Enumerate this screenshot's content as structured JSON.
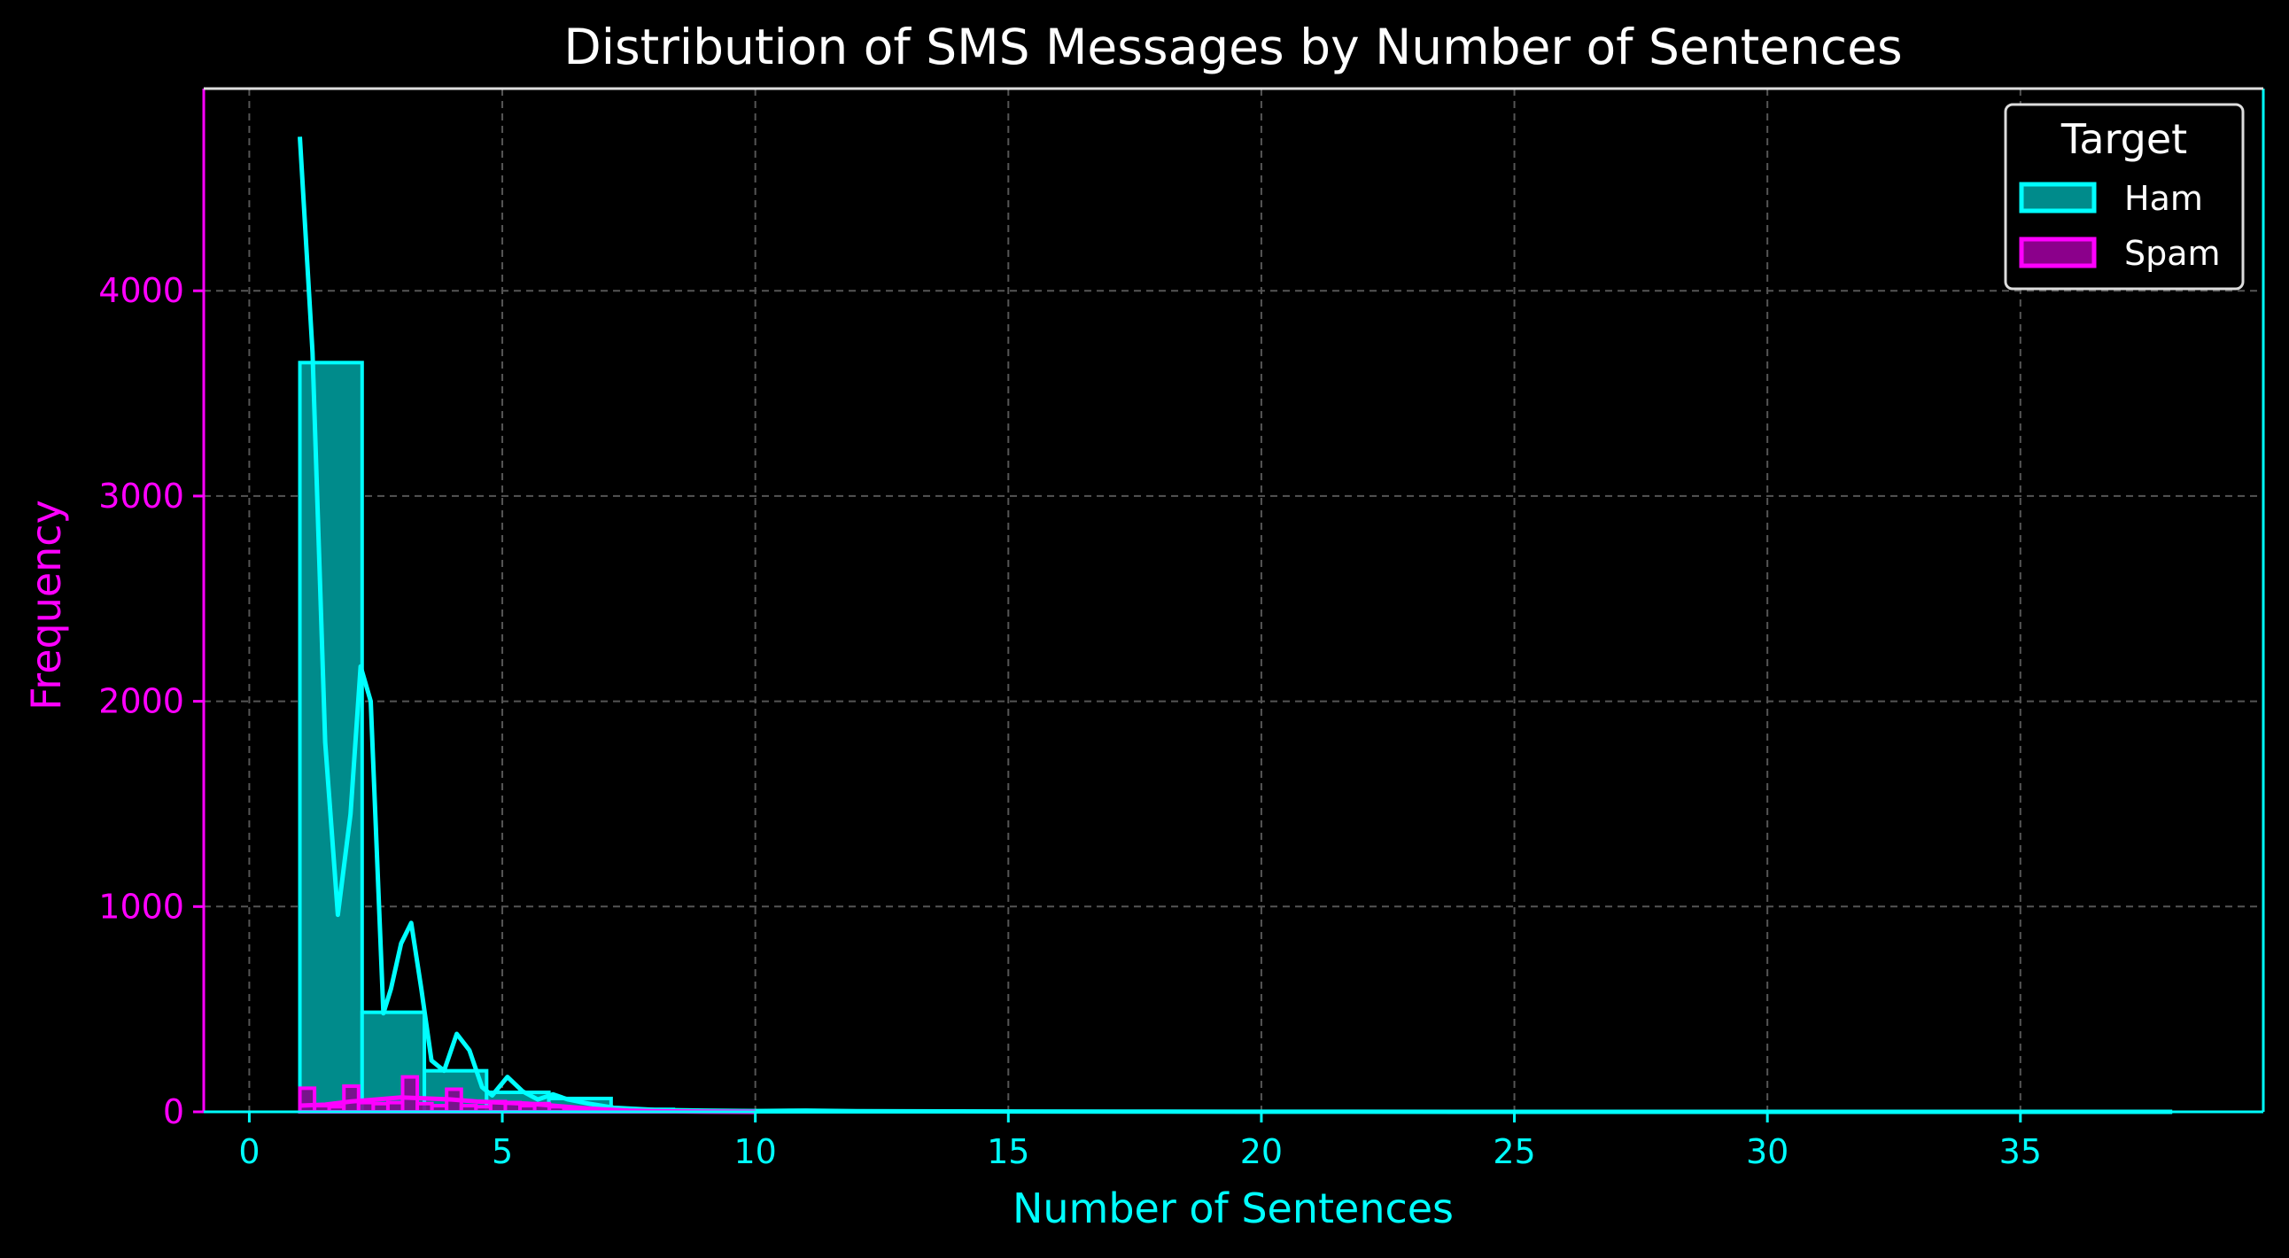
{
  "chart_data": {
    "type": "histogram",
    "title": "Distribution of SMS Messages by Number of Sentences",
    "xlabel": "Number of Sentences",
    "ylabel": "Frequency",
    "xlim": [
      -0.9,
      39.8
    ],
    "ylim": [
      0,
      4985
    ],
    "xticks": [
      0,
      5,
      10,
      15,
      20,
      25,
      30,
      35
    ],
    "yticks": [
      0,
      1000,
      2000,
      3000,
      4000
    ],
    "grid": true,
    "legend": {
      "title": "Target",
      "position": "top-right"
    },
    "bin_width": 1.23,
    "series": [
      {
        "name": "Ham",
        "bins": [
          {
            "x0": 1.0,
            "x1": 2.23,
            "count": 3650
          },
          {
            "x0": 2.23,
            "x1": 3.46,
            "count": 485
          },
          {
            "x0": 3.46,
            "x1": 4.69,
            "count": 200
          },
          {
            "x0": 4.69,
            "x1": 5.92,
            "count": 95
          },
          {
            "x0": 5.92,
            "x1": 7.15,
            "count": 65
          },
          {
            "x0": 7.15,
            "x1": 8.38,
            "count": 12
          },
          {
            "x0": 8.38,
            "x1": 9.61,
            "count": 6
          },
          {
            "x0": 9.61,
            "x1": 10.84,
            "count": 5
          },
          {
            "x0": 10.84,
            "x1": 12.07,
            "count": 4
          },
          {
            "x0": 12.07,
            "x1": 13.3,
            "count": 2
          },
          {
            "x0": 13.3,
            "x1": 14.53,
            "count": 1
          },
          {
            "x0": 17.99,
            "x1": 19.22,
            "count": 1
          },
          {
            "x0": 36.44,
            "x1": 37.67,
            "count": 1
          }
        ],
        "kde": [
          [
            1.0,
            4750
          ],
          [
            1.25,
            3700
          ],
          [
            1.5,
            1800
          ],
          [
            1.75,
            960
          ],
          [
            2.0,
            1450
          ],
          [
            2.2,
            2170
          ],
          [
            2.4,
            2000
          ],
          [
            2.65,
            480
          ],
          [
            2.8,
            600
          ],
          [
            3.0,
            820
          ],
          [
            3.2,
            920
          ],
          [
            3.4,
            600
          ],
          [
            3.6,
            250
          ],
          [
            3.85,
            200
          ],
          [
            4.1,
            380
          ],
          [
            4.35,
            300
          ],
          [
            4.6,
            120
          ],
          [
            4.8,
            80
          ],
          [
            5.1,
            170
          ],
          [
            5.4,
            100
          ],
          [
            5.7,
            60
          ],
          [
            6.0,
            85
          ],
          [
            6.3,
            60
          ],
          [
            6.7,
            40
          ],
          [
            7.2,
            20
          ],
          [
            8.0,
            10
          ],
          [
            9.0,
            6
          ],
          [
            10.0,
            4
          ],
          [
            11.0,
            6
          ],
          [
            12.0,
            3
          ],
          [
            14.0,
            2
          ],
          [
            18.0,
            1
          ],
          [
            25.0,
            0
          ],
          [
            38.0,
            0
          ]
        ],
        "color": "#00ffff",
        "fill": "#008b8b"
      },
      {
        "name": "Spam",
        "bins": [
          {
            "x0": 1.0,
            "x1": 1.29,
            "count": 115
          },
          {
            "x0": 1.29,
            "x1": 1.58,
            "count": 30
          },
          {
            "x0": 1.58,
            "x1": 1.87,
            "count": 25
          },
          {
            "x0": 1.87,
            "x1": 2.16,
            "count": 125
          },
          {
            "x0": 2.16,
            "x1": 2.45,
            "count": 45
          },
          {
            "x0": 2.45,
            "x1": 2.74,
            "count": 40
          },
          {
            "x0": 2.74,
            "x1": 3.03,
            "count": 45
          },
          {
            "x0": 3.03,
            "x1": 3.32,
            "count": 170
          },
          {
            "x0": 3.32,
            "x1": 3.61,
            "count": 40
          },
          {
            "x0": 3.61,
            "x1": 3.9,
            "count": 30
          },
          {
            "x0": 3.9,
            "x1": 4.19,
            "count": 110
          },
          {
            "x0": 4.19,
            "x1": 4.48,
            "count": 30
          },
          {
            "x0": 4.48,
            "x1": 4.77,
            "count": 25
          },
          {
            "x0": 4.77,
            "x1": 5.06,
            "count": 50
          },
          {
            "x0": 5.06,
            "x1": 5.35,
            "count": 45
          },
          {
            "x0": 5.35,
            "x1": 5.64,
            "count": 30
          },
          {
            "x0": 5.64,
            "x1": 5.93,
            "count": 40
          },
          {
            "x0": 5.93,
            "x1": 6.22,
            "count": 25
          },
          {
            "x0": 6.22,
            "x1": 6.51,
            "count": 15
          },
          {
            "x0": 6.51,
            "x1": 6.8,
            "count": 10
          },
          {
            "x0": 6.8,
            "x1": 7.09,
            "count": 10
          },
          {
            "x0": 7.09,
            "x1": 7.38,
            "count": 5
          },
          {
            "x0": 7.38,
            "x1": 7.67,
            "count": 5
          },
          {
            "x0": 7.67,
            "x1": 7.96,
            "count": 3
          },
          {
            "x0": 7.96,
            "x1": 8.25,
            "count": 2
          },
          {
            "x0": 8.25,
            "x1": 8.54,
            "count": 2
          }
        ],
        "kde": [
          [
            1.0,
            30
          ],
          [
            1.5,
            35
          ],
          [
            2.0,
            50
          ],
          [
            2.5,
            60
          ],
          [
            3.0,
            70
          ],
          [
            3.5,
            65
          ],
          [
            4.0,
            60
          ],
          [
            4.5,
            50
          ],
          [
            5.0,
            45
          ],
          [
            5.5,
            40
          ],
          [
            6.0,
            30
          ],
          [
            6.5,
            20
          ],
          [
            7.0,
            12
          ],
          [
            7.5,
            6
          ],
          [
            8.0,
            3
          ],
          [
            9.0,
            1
          ],
          [
            10.0,
            0
          ]
        ],
        "color": "#ff00ff",
        "fill": "#8b008b"
      }
    ]
  }
}
